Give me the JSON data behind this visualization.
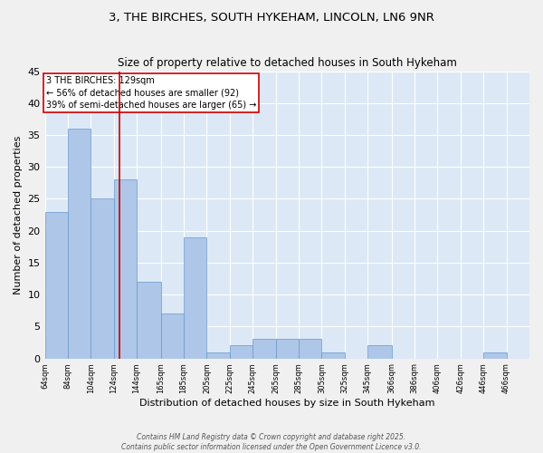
{
  "title": "3, THE BIRCHES, SOUTH HYKEHAM, LINCOLN, LN6 9NR",
  "subtitle": "Size of property relative to detached houses in South Hykeham",
  "xlabel": "Distribution of detached houses by size in South Hykeham",
  "ylabel": "Number of detached properties",
  "bins": [
    64,
    84,
    104,
    124,
    144,
    165,
    185,
    205,
    225,
    245,
    265,
    285,
    305,
    325,
    345,
    366,
    386,
    406,
    426,
    446,
    466
  ],
  "counts": [
    23,
    36,
    25,
    28,
    12,
    7,
    19,
    1,
    2,
    3,
    3,
    3,
    1,
    0,
    2,
    0,
    0,
    0,
    0,
    1,
    0
  ],
  "bar_color": "#aec6e8",
  "bar_edge_color": "#6699cc",
  "vline_x": 129,
  "vline_color": "#cc0000",
  "annotation_text": "3 THE BIRCHES: 129sqm\n← 56% of detached houses are smaller (92)\n39% of semi-detached houses are larger (65) →",
  "box_color": "#cc0000",
  "ylim": [
    0,
    45
  ],
  "yticks": [
    0,
    5,
    10,
    15,
    20,
    25,
    30,
    35,
    40,
    45
  ],
  "plot_bg_color": "#dce8f5",
  "fig_bg_color": "#f0f0f0",
  "footer_line1": "Contains HM Land Registry data © Crown copyright and database right 2025.",
  "footer_line2": "Contains public sector information licensed under the Open Government Licence v3.0."
}
